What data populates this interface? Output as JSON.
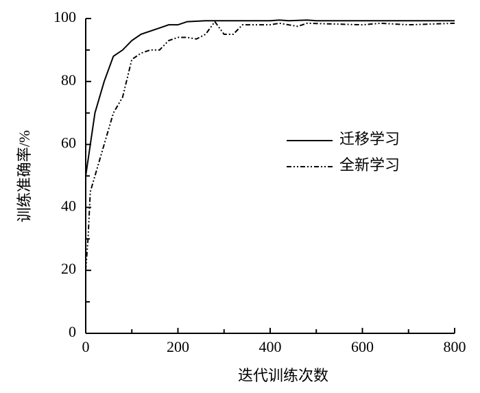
{
  "chart_data": {
    "type": "line",
    "xlabel": "迭代训练次数",
    "ylabel": "训练准确率/%",
    "xlim": [
      0,
      800
    ],
    "xticks": [
      0,
      200,
      400,
      600,
      800
    ],
    "xticks_minor": [
      100,
      300,
      500,
      700
    ],
    "ylim": [
      0,
      100
    ],
    "yticks": [
      0,
      20,
      40,
      60,
      80,
      100
    ],
    "yticks_minor": [
      10,
      30,
      50,
      70,
      90
    ],
    "legend": "right",
    "series": [
      {
        "name": "迁移学习",
        "color": "#000000",
        "linestyle": "solid",
        "x": [
          0,
          20,
          40,
          60,
          80,
          100,
          120,
          160,
          180,
          200,
          220,
          260,
          300,
          400,
          420,
          440,
          480,
          500,
          800
        ],
        "values": [
          50,
          70,
          80,
          88,
          90,
          93,
          95,
          97,
          98,
          98,
          99,
          99.3,
          99.3,
          99.3,
          99.5,
          99.3,
          99.5,
          99.3,
          99.3
        ]
      },
      {
        "name": "全新学习",
        "color": "#000000",
        "linestyle": "dashdot",
        "x": [
          0,
          5,
          10,
          20,
          40,
          60,
          80,
          100,
          120,
          140,
          160,
          180,
          200,
          220,
          240,
          260,
          280,
          300,
          320,
          340,
          400,
          420,
          460,
          480,
          600,
          640,
          700,
          800
        ],
        "values": [
          20,
          30,
          45,
          50,
          60,
          70,
          75,
          87,
          89,
          90,
          90,
          93,
          94,
          94,
          93.5,
          95,
          99,
          95,
          95,
          98,
          98,
          98.5,
          97.5,
          98.5,
          98,
          98.5,
          98,
          98.5
        ]
      }
    ]
  }
}
